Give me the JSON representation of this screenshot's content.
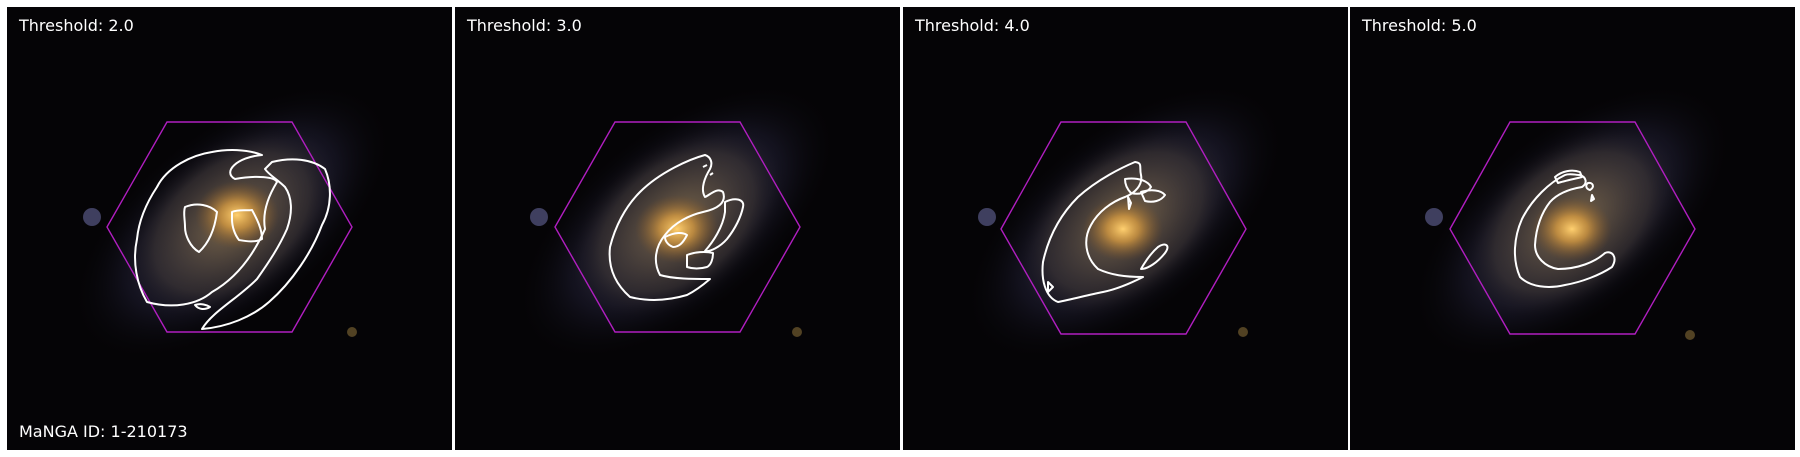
{
  "colors": {
    "background": "#050406",
    "hexagon": "#b01ec0",
    "contour": "#ffffff",
    "galaxy_core": "#e0a040",
    "galaxy_arm": "#6a6aa8"
  },
  "panels": [
    {
      "title": "Threshold: 2.0",
      "footer": "MaNGA ID: 1-210173"
    },
    {
      "title": "Threshold: 3.0",
      "footer": ""
    },
    {
      "title": "Threshold: 4.0",
      "footer": ""
    },
    {
      "title": "Threshold: 5.0",
      "footer": ""
    }
  ]
}
